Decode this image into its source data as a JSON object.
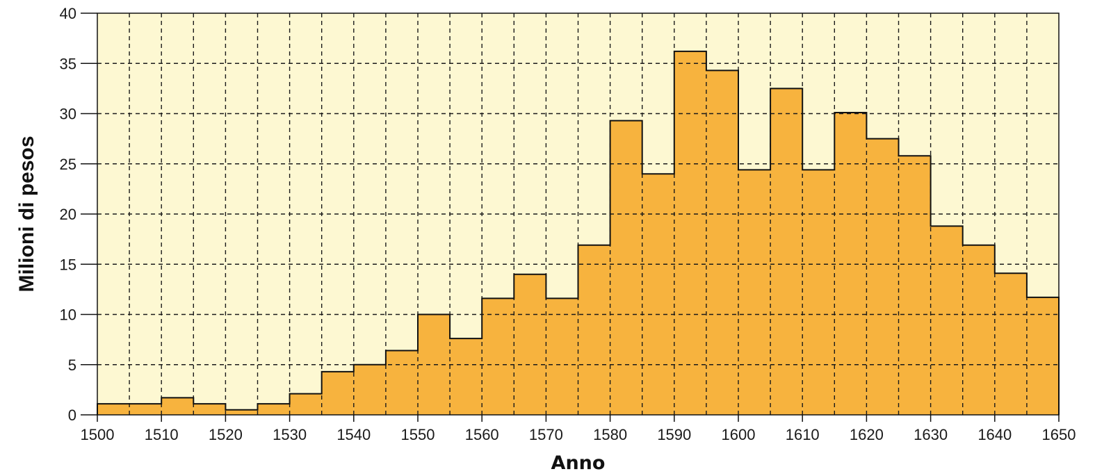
{
  "chart_data": {
    "type": "bar",
    "xlabel": "Anno",
    "ylabel": "Milioni di pesos",
    "bin_width": 5,
    "x": [
      1500,
      1505,
      1510,
      1515,
      1520,
      1525,
      1530,
      1535,
      1540,
      1545,
      1550,
      1555,
      1560,
      1565,
      1570,
      1575,
      1580,
      1585,
      1590,
      1595,
      1600,
      1605,
      1610,
      1615,
      1620,
      1625,
      1630,
      1635,
      1640,
      1645
    ],
    "values": [
      1.1,
      1.1,
      1.7,
      1.1,
      0.5,
      1.1,
      2.1,
      4.3,
      5.0,
      6.4,
      10.0,
      7.6,
      11.6,
      14.0,
      11.6,
      16.9,
      29.3,
      24.0,
      36.2,
      34.3,
      24.4,
      32.5,
      24.4,
      30.1,
      27.5,
      25.8,
      18.8,
      16.9,
      14.1,
      11.7
    ],
    "xlim": [
      1500,
      1650
    ],
    "ylim": [
      0,
      40
    ],
    "x_ticks": [
      "1500",
      "1510",
      "1520",
      "1530",
      "1540",
      "1550",
      "1560",
      "1570",
      "1580",
      "1590",
      "1600",
      "1610",
      "1620",
      "1630",
      "1640",
      "1650"
    ],
    "y_ticks": [
      "0",
      "5",
      "10",
      "15",
      "20",
      "25",
      "30",
      "35",
      "40"
    ],
    "grid": true,
    "colors": {
      "background": "#fdf8d2",
      "bar_fill": "#f7b33e",
      "outline": "#111111",
      "grid": "#1a1a1a"
    }
  }
}
